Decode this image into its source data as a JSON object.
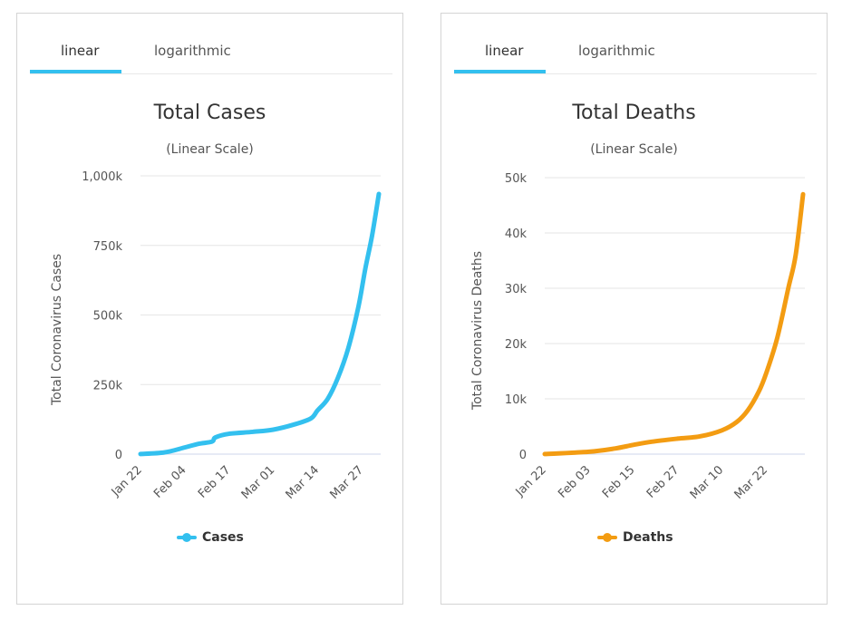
{
  "chart_data": [
    {
      "type": "line",
      "tabs": [
        "linear",
        "logarithmic"
      ],
      "active_tab": "linear",
      "title": "Total Cases",
      "subtitle": "(Linear Scale)",
      "ylabel": "Total Coronavirus Cases",
      "xlabel": "",
      "ylim": [
        0,
        1000000
      ],
      "yticks": [
        0,
        250000,
        500000,
        750000,
        1000000
      ],
      "ytick_labels": [
        "0",
        "250k",
        "500k",
        "750k",
        "1,000k"
      ],
      "xtick_labels": [
        "Jan 22",
        "Feb 04",
        "Feb 17",
        "Mar 01",
        "Mar 14",
        "Mar 27"
      ],
      "xrange": [
        "Jan 22",
        "Apr 01"
      ],
      "grid": true,
      "legend": "bottom",
      "color": "#33c0ef",
      "series": [
        {
          "name": "Cases",
          "x": [
            "Jan 22",
            "Jan 29",
            "Feb 04",
            "Feb 08",
            "Feb 12",
            "Feb 13",
            "Feb 17",
            "Feb 24",
            "Mar 01",
            "Mar 07",
            "Mar 12",
            "Mar 14",
            "Mar 17",
            "Mar 20",
            "Mar 23",
            "Mar 26",
            "Mar 28",
            "Mar 30",
            "Apr 01"
          ],
          "values": [
            580,
            6000,
            24000,
            37000,
            45000,
            60000,
            73000,
            80000,
            88000,
            106000,
            128000,
            157000,
            199000,
            275000,
            380000,
            530000,
            665000,
            785000,
            935000
          ]
        }
      ]
    },
    {
      "type": "line",
      "tabs": [
        "linear",
        "logarithmic"
      ],
      "active_tab": "linear",
      "title": "Total Deaths",
      "subtitle": "(Linear Scale)",
      "ylabel": "Total Coronavirus Deaths",
      "xlabel": "",
      "ylim": [
        0,
        50000
      ],
      "yticks": [
        0,
        10000,
        20000,
        30000,
        40000,
        50000
      ],
      "ytick_labels": [
        "0",
        "10k",
        "20k",
        "30k",
        "40k",
        "50k"
      ],
      "xtick_labels": [
        "Jan 22",
        "Feb 03",
        "Feb 15",
        "Feb 27",
        "Mar 10",
        "Mar 22"
      ],
      "xrange": [
        "Jan 22",
        "Apr 01"
      ],
      "grid": true,
      "legend": "bottom",
      "color": "#f39c12",
      "series": [
        {
          "name": "Deaths",
          "x": [
            "Jan 22",
            "Feb 03",
            "Feb 10",
            "Feb 15",
            "Feb 20",
            "Feb 27",
            "Mar 04",
            "Mar 10",
            "Mar 14",
            "Mar 17",
            "Mar 20",
            "Mar 22",
            "Mar 25",
            "Mar 28",
            "Mar 30",
            "Apr 01"
          ],
          "values": [
            17,
            427,
            1013,
            1669,
            2247,
            2800,
            3200,
            4300,
            5800,
            7900,
            11300,
            14600,
            21000,
            30000,
            36000,
            47000
          ]
        }
      ]
    }
  ]
}
